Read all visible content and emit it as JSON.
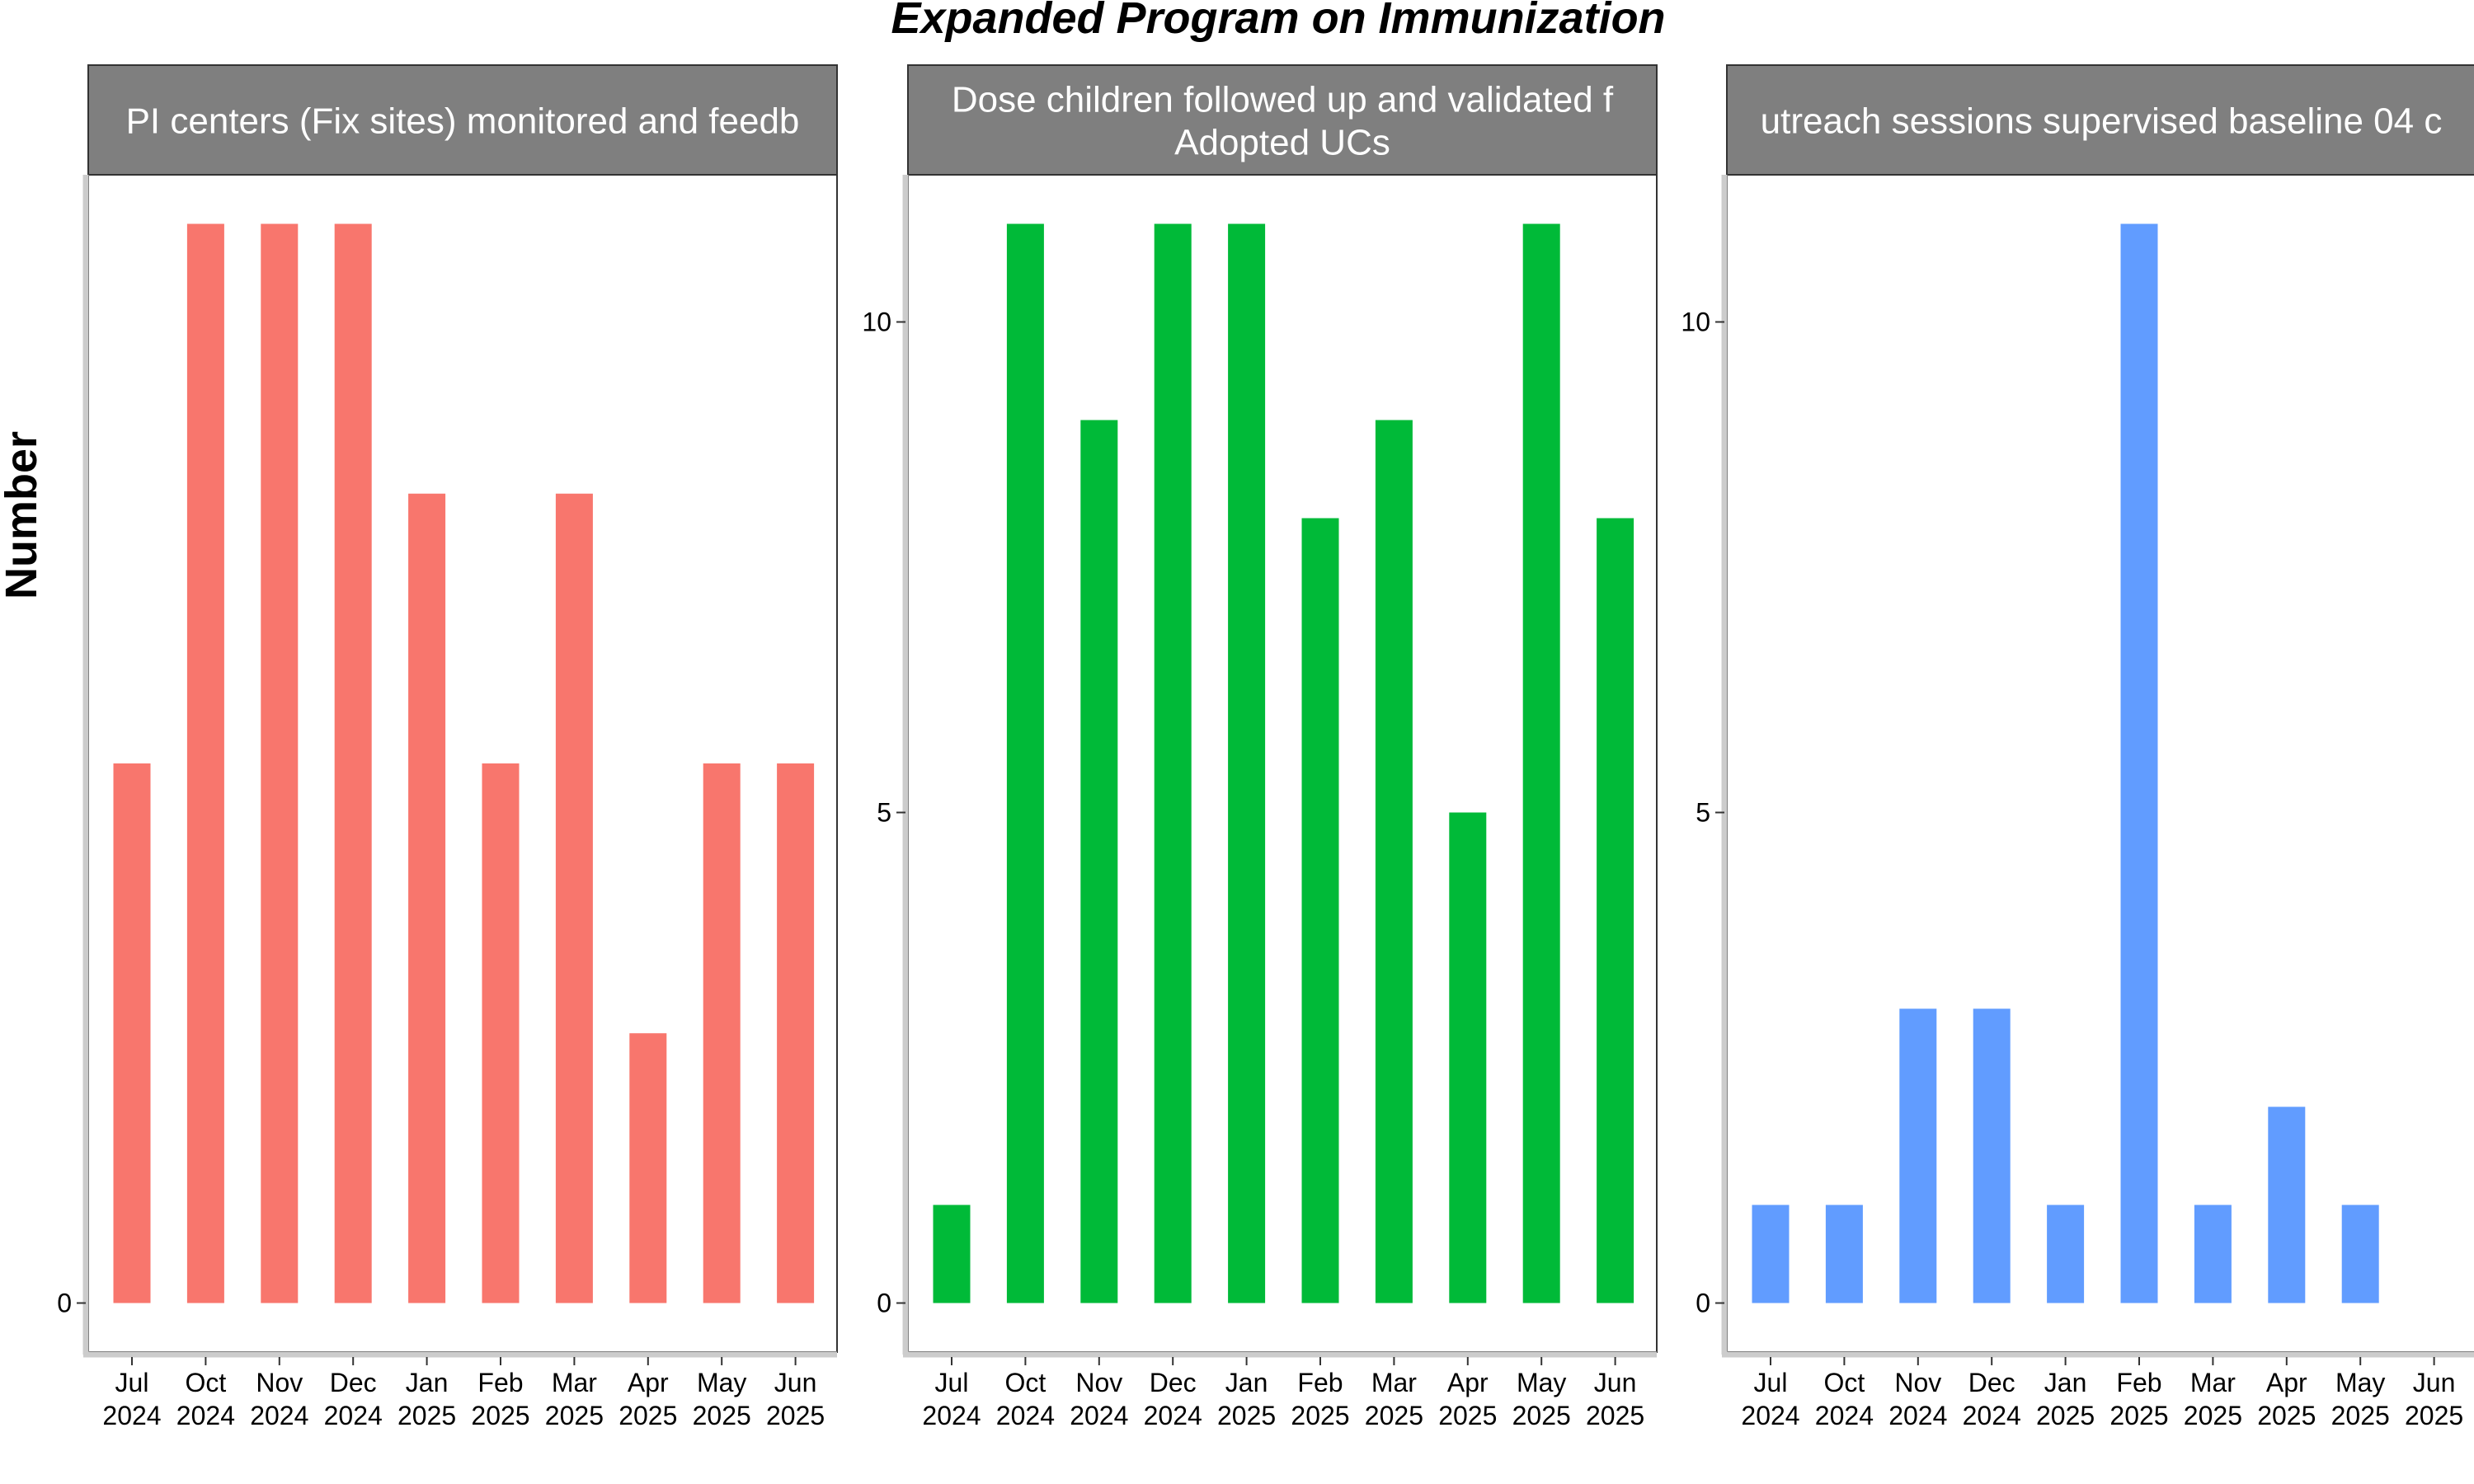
{
  "title": "Expanded Program on Immunization",
  "ylabel": "Number",
  "chart_data": [
    {
      "type": "bar",
      "strip": [
        "PI centers (Fix sites) monitored and feedb"
      ],
      "color": "#F8766D",
      "categories": [
        "Jul 2024",
        "Oct 2024",
        "Nov 2024",
        "Dec 2024",
        "Jan 2025",
        "Feb 2025",
        "Mar 2025",
        "Apr 2025",
        "May 2025",
        "Jun 2025"
      ],
      "values": [
        11,
        22,
        22,
        22,
        16.5,
        11,
        16.5,
        5.5,
        11,
        11
      ],
      "ylim": [
        -1,
        23
      ],
      "yticks": [
        0
      ],
      "ytick_labels": [
        "0"
      ]
    },
    {
      "type": "bar",
      "strip": [
        "Dose children followed up and validated f",
        "Adopted UCs"
      ],
      "color": "#00BA38",
      "categories": [
        "Jul 2024",
        "Oct 2024",
        "Nov 2024",
        "Dec 2024",
        "Jan 2025",
        "Feb 2025",
        "Mar 2025",
        "Apr 2025",
        "May 2025",
        "Jun 2025"
      ],
      "values": [
        1,
        11,
        9,
        11,
        11,
        8,
        9,
        5,
        11,
        8
      ],
      "ylim": [
        -0.5,
        11.5
      ],
      "yticks": [
        0,
        5,
        10
      ],
      "ytick_labels": [
        "0",
        "5",
        "10"
      ]
    },
    {
      "type": "bar",
      "strip": [
        "utreach sessions supervised baseline 04 c"
      ],
      "color": "#619CFF",
      "categories": [
        "Jul 2024",
        "Oct 2024",
        "Nov 2024",
        "Dec 2024",
        "Jan 2025",
        "Feb 2025",
        "Mar 2025",
        "Apr 2025",
        "May 2025",
        "Jun 2025"
      ],
      "values": [
        1,
        1,
        3,
        3,
        1,
        11,
        1,
        2,
        1,
        0
      ],
      "ylim": [
        -0.5,
        11.5
      ],
      "yticks": [
        0,
        5,
        10
      ],
      "ytick_labels": [
        "0",
        "5",
        "10"
      ]
    }
  ]
}
